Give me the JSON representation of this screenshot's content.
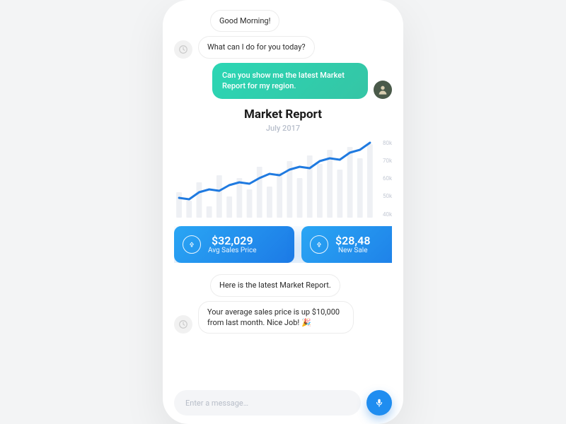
{
  "colors": {
    "page_bg": "#f3f4f5",
    "phone_bg": "#ffffff",
    "bubble_border": "#ececec",
    "text_dark": "#1a1a1a",
    "text_muted": "#b7becb",
    "axis_label": "#c3c9d4",
    "bar_fill": "#eef0f4",
    "line_stroke": "#1f7ae0",
    "user_grad_from": "#2bd6b4",
    "user_grad_to": "#35c5a5",
    "kpi_grad_from": "#2aa6f4",
    "kpi_grad_to": "#1c7ae6",
    "mic_bg": "#1f8df0",
    "input_bg": "#f4f5f7",
    "placeholder": "#b7bdc8"
  },
  "chat": {
    "bot_icon": "⌛",
    "top": [
      {
        "from": "bot",
        "text": "Good Morning!"
      },
      {
        "from": "bot",
        "text": "What can I do for you today?"
      },
      {
        "from": "user",
        "text": "Can you show me the latest Market Report for my region."
      }
    ],
    "bottom": [
      {
        "from": "bot",
        "text": "Here is the latest Market Report."
      },
      {
        "from": "bot",
        "text": "Your average sales price is up $10,000 from last month. Nice Job! 🎉"
      }
    ]
  },
  "report": {
    "title": "Market Report",
    "subtitle": "July 2017",
    "chart": {
      "type": "line+bar",
      "ylim": [
        30,
        85
      ],
      "y_ticks": [
        "80k",
        "70k",
        "60k",
        "50k",
        "40k"
      ],
      "bars": [
        48,
        42,
        55,
        38,
        60,
        45,
        58,
        50,
        66,
        52,
        62,
        70,
        58,
        74,
        68,
        78,
        64,
        80,
        72,
        82
      ],
      "line": [
        44,
        43,
        48,
        50,
        49,
        53,
        55,
        54,
        58,
        61,
        60,
        64,
        66,
        65,
        70,
        72,
        71,
        76,
        78,
        83
      ],
      "line_width": 3,
      "bar_width": 0.55
    },
    "kpis": [
      {
        "value": "$32,029",
        "label": "Avg Sales Price",
        "trend": "up"
      },
      {
        "value": "$28,48",
        "label": "New Sale",
        "trend": "up"
      }
    ]
  },
  "input": {
    "placeholder": "Enter a message…"
  }
}
